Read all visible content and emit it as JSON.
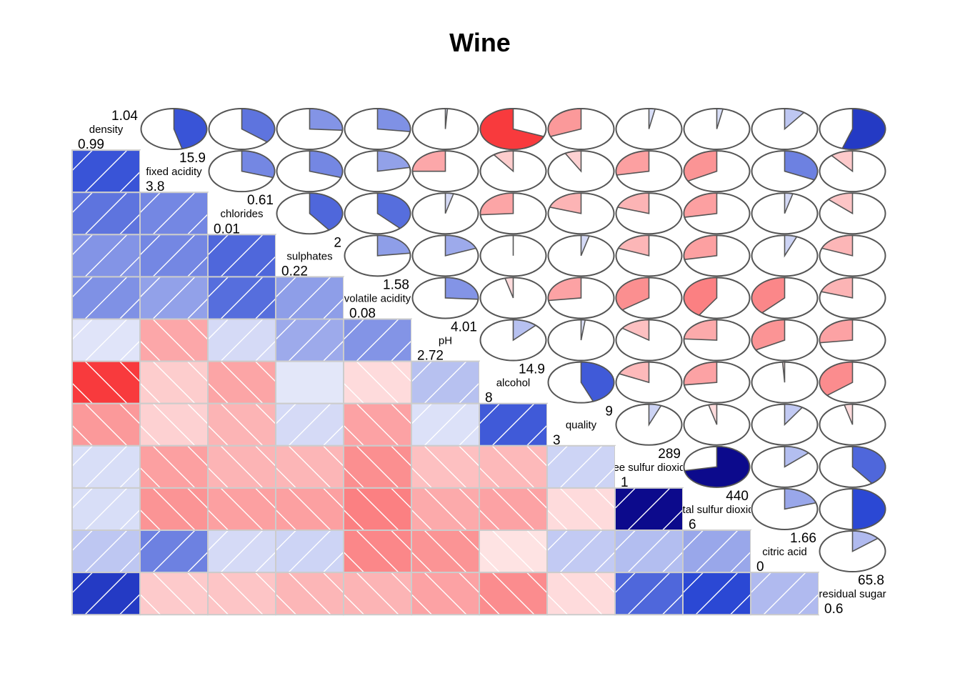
{
  "chart_data": {
    "type": "heatmap",
    "title": "Wine",
    "variables": [
      {
        "name": "density",
        "max": "1.04",
        "min": "0.99"
      },
      {
        "name": "fixed acidity",
        "max": "15.9",
        "min": "3.8"
      },
      {
        "name": "chlorides",
        "max": "0.61",
        "min": "0.01"
      },
      {
        "name": "sulphates",
        "max": "2",
        "min": "0.22"
      },
      {
        "name": "volatile acidity",
        "max": "1.58",
        "min": "0.08"
      },
      {
        "name": "pH",
        "max": "4.01",
        "min": "2.72"
      },
      {
        "name": "alcohol",
        "max": "14.9",
        "min": "8"
      },
      {
        "name": "quality",
        "max": "9",
        "min": "3"
      },
      {
        "name": "free sulfur dioxide",
        "max": "289",
        "min": "1"
      },
      {
        "name": "total sulfur dioxide",
        "max": "440",
        "min": "6"
      },
      {
        "name": "citric acid",
        "max": "1.66",
        "min": "0"
      },
      {
        "name": "residual sugar",
        "max": "65.8",
        "min": "0.6"
      }
    ],
    "correlations": [
      [
        1.0,
        0.46,
        0.36,
        0.26,
        0.27,
        0.01,
        -0.69,
        -0.31,
        0.03,
        0.03,
        0.1,
        0.55
      ],
      [
        0.46,
        1.0,
        0.3,
        0.3,
        0.22,
        -0.25,
        -0.1,
        -0.08,
        -0.28,
        -0.33,
        0.32,
        -0.11
      ],
      [
        0.36,
        0.3,
        1.0,
        0.4,
        0.38,
        0.04,
        -0.26,
        -0.2,
        -0.2,
        -0.28,
        0.04,
        -0.13
      ],
      [
        0.26,
        0.3,
        0.4,
        1.0,
        0.23,
        0.19,
        -0.0,
        0.04,
        -0.19,
        -0.28,
        0.06,
        -0.19
      ],
      [
        0.27,
        0.22,
        0.38,
        0.23,
        1.0,
        0.26,
        -0.04,
        -0.27,
        -0.35,
        -0.41,
        -0.38,
        -0.2
      ],
      [
        0.01,
        -0.25,
        0.04,
        0.19,
        0.26,
        1.0,
        0.12,
        0.02,
        -0.15,
        -0.24,
        -0.33,
        -0.27
      ],
      [
        -0.69,
        -0.1,
        -0.26,
        -0.0,
        -0.04,
        0.12,
        1.0,
        0.44,
        -0.18,
        -0.27,
        -0.01,
        -0.36
      ],
      [
        -0.31,
        -0.08,
        -0.2,
        0.04,
        -0.27,
        0.02,
        0.44,
        1.0,
        0.06,
        -0.04,
        0.09,
        -0.04
      ],
      [
        0.03,
        -0.28,
        -0.2,
        -0.19,
        -0.35,
        -0.15,
        -0.18,
        0.06,
        1.0,
        0.72,
        0.13,
        0.4
      ],
      [
        0.03,
        -0.33,
        -0.28,
        -0.28,
        -0.41,
        -0.24,
        -0.27,
        -0.04,
        0.72,
        1.0,
        0.2,
        0.5
      ],
      [
        0.1,
        0.32,
        0.04,
        0.06,
        -0.38,
        -0.33,
        -0.01,
        0.09,
        0.13,
        0.2,
        1.0,
        0.14
      ],
      [
        0.55,
        -0.11,
        -0.13,
        -0.19,
        -0.2,
        -0.27,
        -0.36,
        -0.04,
        0.4,
        0.5,
        0.14,
        1.0
      ]
    ],
    "lower_panel": "shade",
    "upper_panel": "pie",
    "diagonal_panel": "minmax",
    "positive_color": "#2b48d4",
    "negative_color": "#f8393c"
  }
}
